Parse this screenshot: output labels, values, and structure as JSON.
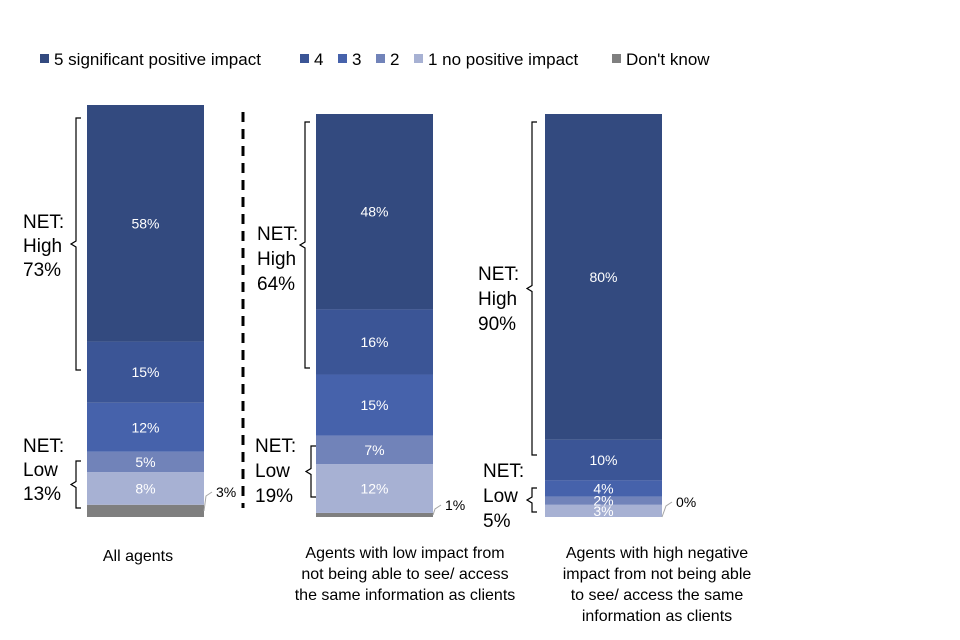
{
  "colors": {
    "5 significant positive impact": "#334a7f",
    "4": "#3b5596",
    "3": "#4662ab",
    "2": "#7183b9",
    "1 no positive impact": "#a7b1d3",
    "Don't know": "#7f7f7f"
  },
  "chart_data": {
    "type": "bar",
    "stacked": true,
    "legend_position": "top",
    "legend": [
      "5 significant positive impact",
      "4",
      "3",
      "2",
      "1 no positive impact",
      "Don't know"
    ],
    "categories": [
      "All agents",
      "Agents with low impact from not being able to see/ access the same information as clients",
      "Agents with high negative impact from not being able to see/ access the same information as clients"
    ],
    "category_lines": [
      [
        "All agents"
      ],
      [
        "Agents with low impact from",
        "not being able to see/ access",
        "the same information as clients"
      ],
      [
        "Agents with high negative",
        "impact from not being able",
        "to see/ access the same",
        "information as clients"
      ]
    ],
    "series": [
      {
        "name": "5 significant positive impact",
        "values": [
          58,
          48,
          80
        ],
        "labels": [
          "58%",
          "48%",
          "80%"
        ]
      },
      {
        "name": "4",
        "values": [
          15,
          16,
          10
        ],
        "labels": [
          "15%",
          "16%",
          "10%"
        ]
      },
      {
        "name": "3",
        "values": [
          12,
          15,
          4
        ],
        "labels": [
          "12%",
          "15%",
          "4%"
        ]
      },
      {
        "name": "2",
        "values": [
          5,
          7,
          2
        ],
        "labels": [
          "5%",
          "7%",
          "2%"
        ]
      },
      {
        "name": "1 no positive impact",
        "values": [
          8,
          12,
          3
        ],
        "labels": [
          "8%",
          "12%",
          "3%"
        ]
      },
      {
        "name": "Don't know",
        "values": [
          3,
          1,
          0
        ],
        "labels": [
          "3%",
          "1%",
          "0%"
        ]
      }
    ],
    "net": [
      {
        "high": [
          "NET:",
          "High",
          "73%"
        ],
        "low": [
          "NET:",
          "Low",
          "13%"
        ]
      },
      {
        "high": [
          "NET:",
          "High",
          "64%"
        ],
        "low": [
          "NET:",
          "Low",
          "19%"
        ]
      },
      {
        "high": [
          "NET:",
          "High",
          "90%"
        ],
        "low": [
          "NET:",
          "Low",
          "5%"
        ]
      }
    ],
    "divider_after_category": 0
  }
}
